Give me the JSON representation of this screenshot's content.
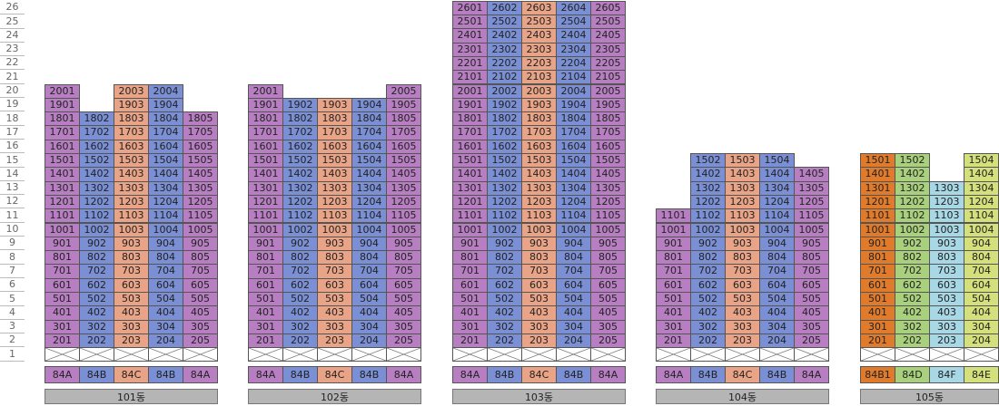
{
  "floors": [
    "26",
    "25",
    "24",
    "23",
    "22",
    "21",
    "20",
    "19",
    "18",
    "17",
    "16",
    "15",
    "14",
    "13",
    "12",
    "11",
    "10",
    "9",
    "8",
    "7",
    "6",
    "5",
    "4",
    "3",
    "2",
    "1"
  ],
  "type_colors": {
    "84A": "#b77fc1",
    "84B": "#7b8fd5",
    "84C": "#e9a487",
    "84B1": "#e07b2b",
    "84D": "#a9d07c",
    "84F": "#a8d7e5",
    "84E": "#d4e07c"
  },
  "buildings": [
    {
      "name": "101동",
      "columns": [
        {
          "type": "84A",
          "units": [
            "2001",
            "1901",
            "1801",
            "1701",
            "1601",
            "1501",
            "1401",
            "1301",
            "1201",
            "1101",
            "1001",
            "901",
            "801",
            "701",
            "601",
            "501",
            "401",
            "301",
            "201"
          ]
        },
        {
          "type": "84B",
          "units": [
            "1802",
            "1702",
            "1602",
            "1502",
            "1402",
            "1302",
            "1202",
            "1102",
            "1002",
            "902",
            "802",
            "702",
            "602",
            "502",
            "402",
            "302",
            "202"
          ]
        },
        {
          "type": "84C",
          "units": [
            "2003",
            "1903",
            "1803",
            "1703",
            "1603",
            "1503",
            "1403",
            "1303",
            "1203",
            "1103",
            "1003",
            "903",
            "803",
            "703",
            "603",
            "503",
            "403",
            "303",
            "203"
          ]
        },
        {
          "type": "84B",
          "units": [
            "2004",
            "1904",
            "1804",
            "1704",
            "1604",
            "1504",
            "1404",
            "1304",
            "1204",
            "1104",
            "1004",
            "904",
            "804",
            "704",
            "604",
            "504",
            "404",
            "304",
            "204"
          ]
        },
        {
          "type": "84A",
          "units": [
            "1805",
            "1705",
            "1605",
            "1505",
            "1405",
            "1305",
            "1205",
            "1105",
            "1005",
            "905",
            "805",
            "705",
            "605",
            "505",
            "405",
            "305",
            "205"
          ]
        }
      ]
    },
    {
      "name": "102동",
      "columns": [
        {
          "type": "84A",
          "units": [
            "2001",
            "1901",
            "1801",
            "1701",
            "1601",
            "1501",
            "1401",
            "1301",
            "1201",
            "1101",
            "1001",
            "901",
            "801",
            "701",
            "601",
            "501",
            "401",
            "301",
            "201"
          ]
        },
        {
          "type": "84B",
          "units": [
            "1902",
            "1802",
            "1702",
            "1602",
            "1502",
            "1402",
            "1302",
            "1202",
            "1102",
            "1002",
            "902",
            "802",
            "702",
            "602",
            "502",
            "402",
            "302",
            "202"
          ]
        },
        {
          "type": "84C",
          "units": [
            "1903",
            "1803",
            "1703",
            "1603",
            "1503",
            "1403",
            "1303",
            "1203",
            "1103",
            "1003",
            "903",
            "803",
            "703",
            "603",
            "503",
            "403",
            "303",
            "203"
          ]
        },
        {
          "type": "84B",
          "units": [
            "1904",
            "1804",
            "1704",
            "1604",
            "1504",
            "1404",
            "1304",
            "1204",
            "1104",
            "1004",
            "904",
            "804",
            "704",
            "604",
            "504",
            "404",
            "304",
            "204"
          ]
        },
        {
          "type": "84A",
          "units": [
            "2005",
            "1905",
            "1805",
            "1705",
            "1605",
            "1505",
            "1405",
            "1305",
            "1205",
            "1105",
            "1005",
            "905",
            "805",
            "705",
            "605",
            "505",
            "405",
            "305",
            "205"
          ]
        }
      ]
    },
    {
      "name": "103동",
      "columns": [
        {
          "type": "84A",
          "units": [
            "2601",
            "2501",
            "2401",
            "2301",
            "2201",
            "2101",
            "2001",
            "1901",
            "1801",
            "1701",
            "1601",
            "1501",
            "1401",
            "1301",
            "1201",
            "1101",
            "1001",
            "901",
            "801",
            "701",
            "601",
            "501",
            "401",
            "301",
            "201"
          ]
        },
        {
          "type": "84B",
          "units": [
            "2602",
            "2502",
            "2402",
            "2302",
            "2202",
            "2102",
            "2002",
            "1902",
            "1802",
            "1702",
            "1602",
            "1502",
            "1402",
            "1302",
            "1202",
            "1102",
            "1002",
            "902",
            "802",
            "702",
            "602",
            "502",
            "402",
            "302",
            "202"
          ]
        },
        {
          "type": "84C",
          "units": [
            "2603",
            "2503",
            "2403",
            "2303",
            "2203",
            "2103",
            "2003",
            "1903",
            "1803",
            "1703",
            "1603",
            "1503",
            "1403",
            "1303",
            "1203",
            "1103",
            "1003",
            "903",
            "803",
            "703",
            "603",
            "503",
            "403",
            "303",
            "203"
          ]
        },
        {
          "type": "84B",
          "units": [
            "2604",
            "2504",
            "2404",
            "2304",
            "2204",
            "2104",
            "2004",
            "1904",
            "1804",
            "1704",
            "1604",
            "1504",
            "1404",
            "1304",
            "1204",
            "1104",
            "1004",
            "904",
            "804",
            "704",
            "604",
            "504",
            "404",
            "304",
            "204"
          ]
        },
        {
          "type": "84A",
          "units": [
            "2605",
            "2505",
            "2405",
            "2305",
            "2205",
            "2105",
            "2005",
            "1905",
            "1805",
            "1705",
            "1605",
            "1505",
            "1405",
            "1305",
            "1205",
            "1105",
            "1005",
            "905",
            "805",
            "705",
            "605",
            "505",
            "405",
            "305",
            "205"
          ]
        }
      ]
    },
    {
      "name": "104동",
      "columns": [
        {
          "type": "84A",
          "units": [
            "1101",
            "1001",
            "901",
            "801",
            "701",
            "601",
            "501",
            "401",
            "301",
            "201"
          ]
        },
        {
          "type": "84B",
          "units": [
            "1502",
            "1402",
            "1302",
            "1202",
            "1102",
            "1002",
            "902",
            "802",
            "702",
            "602",
            "502",
            "402",
            "302",
            "202"
          ]
        },
        {
          "type": "84C",
          "units": [
            "1503",
            "1403",
            "1303",
            "1203",
            "1103",
            "1003",
            "903",
            "803",
            "703",
            "603",
            "503",
            "403",
            "303",
            "203"
          ]
        },
        {
          "type": "84B",
          "units": [
            "1504",
            "1404",
            "1304",
            "1204",
            "1104",
            "1004",
            "904",
            "804",
            "704",
            "604",
            "504",
            "404",
            "304",
            "204"
          ]
        },
        {
          "type": "84A",
          "units": [
            "1405",
            "1305",
            "1205",
            "1105",
            "1005",
            "905",
            "805",
            "705",
            "605",
            "505",
            "405",
            "305",
            "205"
          ]
        }
      ]
    },
    {
      "name": "105동",
      "columns": [
        {
          "type": "84B1",
          "units": [
            "1501",
            "1401",
            "1301",
            "1201",
            "1101",
            "1001",
            "901",
            "801",
            "701",
            "601",
            "501",
            "401",
            "301",
            "201"
          ]
        },
        {
          "type": "84D",
          "units": [
            "1502",
            "1402",
            "1302",
            "1202",
            "1102",
            "1002",
            "902",
            "802",
            "702",
            "602",
            "502",
            "402",
            "302",
            "202"
          ]
        },
        {
          "type": "84F",
          "units": [
            "1303",
            "1203",
            "1103",
            "1003",
            "903",
            "803",
            "703",
            "603",
            "503",
            "403",
            "303",
            "203"
          ]
        },
        {
          "type": "84E",
          "units": [
            "1504",
            "1404",
            "1304",
            "1204",
            "1104",
            "1004",
            "904",
            "804",
            "704",
            "604",
            "504",
            "404",
            "304",
            "204"
          ]
        }
      ]
    }
  ]
}
